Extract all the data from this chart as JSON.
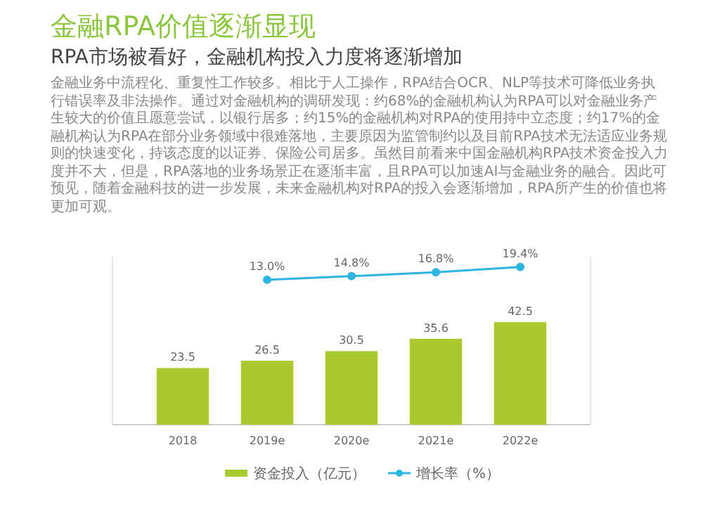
{
  "chart_data": {
    "type": "bar",
    "title": "金融RPA价值逐渐显现",
    "subtitle": "RPA市场被看好，金融机构投入力度将逐渐增加",
    "annotations": [
      "金融业务中流程化、重复性工作较多。相比于人工操作，RPA结合OCR、NLP等技术可降低业务执行错误率及非法操作。通过对金融机构的调研发现：约68%的金融机构认为RPA可以对金融业务产生较大的价值且愿意尝试，以银行居多；约15%的金融机构对RPA的使用持中立态度；约17%的金融机构认为RPA在部分业务领域中很难落地，主要原因为监管制约以及目前RPA技术无法适应业务规则的快速变化，持该态度的以证券、保险公司居多。虽然目前看来中国金融机构RPA技术资金投入力度并不大，但是，RPA落地的业务场景正在逐渐丰富，且RPA可以加速AI与金融业务的融合。因此可预见，随着金融科技的进一步发展，未来金融机构对RPA的投入会逐渐增加，RPA所产生的价值也将更加可观。"
    ],
    "categories": [
      "2018",
      "2019e",
      "2020e",
      "2021e",
      "2022e"
    ],
    "series": [
      {
        "name": "资金投入（亿元）",
        "type": "bar",
        "color": "#a9c92f",
        "values": [
          23.5,
          26.5,
          30.5,
          35.6,
          42.5
        ],
        "value_labels": [
          "23.5",
          "26.5",
          "30.5",
          "35.6",
          "42.5"
        ]
      },
      {
        "name": "增长率（%）",
        "type": "line",
        "axis": "y2",
        "color": "#2bb5e0",
        "marker": "circle",
        "values": [
          null,
          13.0,
          14.8,
          16.8,
          19.4
        ],
        "value_labels": [
          null,
          "13.0%",
          "14.8%",
          "16.8%",
          "19.4%"
        ]
      }
    ],
    "ylim": [
      0,
      70
    ],
    "y2lim": [
      -60,
      25
    ],
    "legend": "bottom"
  }
}
